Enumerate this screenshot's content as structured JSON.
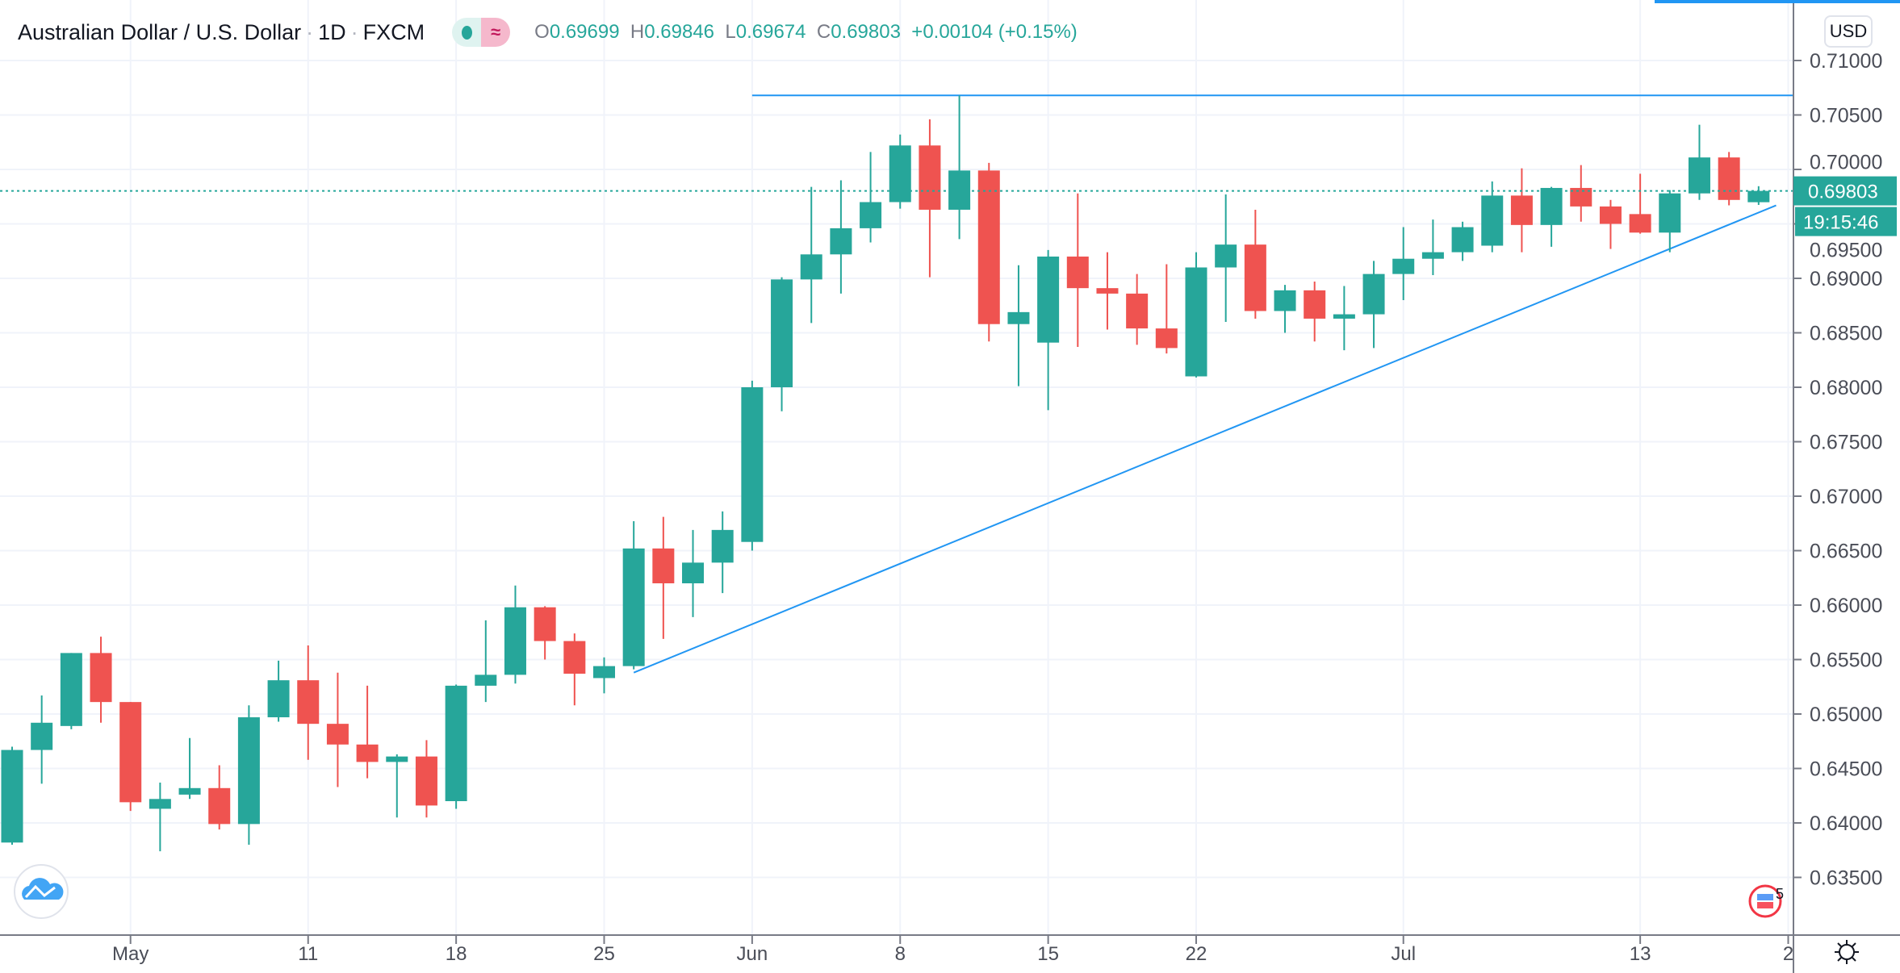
{
  "header": {
    "symbol": "Australian Dollar / U.S. Dollar",
    "interval": "1D",
    "exchange": "FXCM",
    "separator": "·",
    "ohlc": {
      "o_label": "O",
      "o": "0.69699",
      "h_label": "H",
      "h": "0.69846",
      "l_label": "L",
      "l": "0.69674",
      "c_label": "C",
      "c": "0.69803",
      "change": "+0.00104 (+0.15%)"
    },
    "pill_icon": "≈"
  },
  "currency_button": "USD",
  "price_label": "0.69803",
  "countdown": "19:15:46",
  "events_badge": "5",
  "colors": {
    "up": "#26a69a",
    "down": "#ef5350",
    "line": "#2196f3",
    "grid": "#f0f3fa"
  },
  "chart_data": {
    "type": "candlestick",
    "title": "Australian Dollar / U.S. Dollar · 1D · FXCM",
    "ylim": [
      0.6325,
      0.7125
    ],
    "y_ticks": [
      "0.71000",
      "0.70500",
      "0.70000",
      "0.69500",
      "0.69000",
      "0.68500",
      "0.68000",
      "0.67500",
      "0.67000",
      "0.66500",
      "0.66000",
      "0.65500",
      "0.65000",
      "0.64500",
      "0.64000",
      "0.63500"
    ],
    "y_tick_values": [
      0.71,
      0.705,
      0.7,
      0.695,
      0.69,
      0.685,
      0.68,
      0.675,
      0.67,
      0.665,
      0.66,
      0.655,
      0.65,
      0.645,
      0.64,
      0.635
    ],
    "x_ticks": [
      {
        "label": "May",
        "index": 4
      },
      {
        "label": "11",
        "index": 10
      },
      {
        "label": "18",
        "index": 15
      },
      {
        "label": "25",
        "index": 20
      },
      {
        "label": "Jun",
        "index": 25
      },
      {
        "label": "8",
        "index": 30
      },
      {
        "label": "15",
        "index": 35
      },
      {
        "label": "22",
        "index": 40
      },
      {
        "label": "Jul",
        "index": 47
      },
      {
        "label": "13",
        "index": 55
      },
      {
        "label": "2",
        "index": 60
      }
    ],
    "candles_ohlc": [
      [
        0.6382,
        0.647,
        0.638,
        0.6467
      ],
      [
        0.6467,
        0.6517,
        0.6436,
        0.6492
      ],
      [
        0.6489,
        0.6556,
        0.6486,
        0.6556
      ],
      [
        0.6556,
        0.6571,
        0.6492,
        0.6511
      ],
      [
        0.6511,
        0.6511,
        0.6411,
        0.6419
      ],
      [
        0.6413,
        0.6437,
        0.6374,
        0.6422
      ],
      [
        0.6426,
        0.6478,
        0.6422,
        0.6432
      ],
      [
        0.6432,
        0.6453,
        0.6394,
        0.6399
      ],
      [
        0.6399,
        0.6508,
        0.638,
        0.6497
      ],
      [
        0.6497,
        0.6549,
        0.6493,
        0.6531
      ],
      [
        0.6531,
        0.6563,
        0.6458,
        0.6491
      ],
      [
        0.6491,
        0.6538,
        0.6433,
        0.6472
      ],
      [
        0.6472,
        0.6526,
        0.6441,
        0.6456
      ],
      [
        0.6456,
        0.6463,
        0.6405,
        0.6461
      ],
      [
        0.6461,
        0.6476,
        0.6405,
        0.6416
      ],
      [
        0.642,
        0.6527,
        0.6413,
        0.6526
      ],
      [
        0.6526,
        0.6586,
        0.6511,
        0.6536
      ],
      [
        0.6536,
        0.6618,
        0.6528,
        0.6598
      ],
      [
        0.6598,
        0.6599,
        0.655,
        0.6567
      ],
      [
        0.6567,
        0.6574,
        0.6508,
        0.6537
      ],
      [
        0.6533,
        0.6552,
        0.6519,
        0.6544
      ],
      [
        0.6544,
        0.6677,
        0.6541,
        0.6652
      ],
      [
        0.6652,
        0.6681,
        0.6569,
        0.662
      ],
      [
        0.662,
        0.6669,
        0.6589,
        0.6639
      ],
      [
        0.6639,
        0.6686,
        0.6611,
        0.6669
      ],
      [
        0.6658,
        0.6806,
        0.665,
        0.68
      ],
      [
        0.68,
        0.6901,
        0.6778,
        0.6899
      ],
      [
        0.6899,
        0.6984,
        0.6859,
        0.6922
      ],
      [
        0.6922,
        0.699,
        0.6886,
        0.6946
      ],
      [
        0.6946,
        0.7016,
        0.6933,
        0.697
      ],
      [
        0.697,
        0.7032,
        0.6964,
        0.7022
      ],
      [
        0.7022,
        0.7046,
        0.6901,
        0.6963
      ],
      [
        0.6963,
        0.7068,
        0.6936,
        0.6999
      ],
      [
        0.6999,
        0.7006,
        0.6842,
        0.6858
      ],
      [
        0.6858,
        0.6912,
        0.6801,
        0.6869
      ],
      [
        0.6841,
        0.6926,
        0.6779,
        0.692
      ],
      [
        0.692,
        0.6978,
        0.6837,
        0.6891
      ],
      [
        0.6891,
        0.6924,
        0.6853,
        0.6886
      ],
      [
        0.6886,
        0.6904,
        0.6839,
        0.6854
      ],
      [
        0.6854,
        0.6913,
        0.6831,
        0.6836
      ],
      [
        0.681,
        0.6924,
        0.6809,
        0.691
      ],
      [
        0.691,
        0.6977,
        0.686,
        0.6931
      ],
      [
        0.6931,
        0.6963,
        0.6863,
        0.687
      ],
      [
        0.687,
        0.6894,
        0.685,
        0.6889
      ],
      [
        0.6889,
        0.6897,
        0.6842,
        0.6863
      ],
      [
        0.6863,
        0.6893,
        0.6834,
        0.6867
      ],
      [
        0.6867,
        0.6916,
        0.6836,
        0.6904
      ],
      [
        0.6904,
        0.6947,
        0.688,
        0.6918
      ],
      [
        0.6918,
        0.6954,
        0.6903,
        0.6924
      ],
      [
        0.6924,
        0.6952,
        0.6916,
        0.6947
      ],
      [
        0.693,
        0.6989,
        0.6924,
        0.6976
      ],
      [
        0.6976,
        0.7001,
        0.6924,
        0.6949
      ],
      [
        0.6949,
        0.6984,
        0.6929,
        0.6983
      ],
      [
        0.6983,
        0.7004,
        0.6952,
        0.6966
      ],
      [
        0.6966,
        0.6972,
        0.6927,
        0.695
      ],
      [
        0.6959,
        0.6996,
        0.6941,
        0.6942
      ],
      [
        0.6942,
        0.6981,
        0.6924,
        0.6978
      ],
      [
        0.6978,
        0.7041,
        0.6972,
        0.7011
      ],
      [
        0.7011,
        0.7016,
        0.6967,
        0.6972
      ],
      [
        0.69699,
        0.69846,
        0.69674,
        0.69803
      ]
    ],
    "current_price": 0.69803,
    "drawings": [
      {
        "type": "horizontal-ray",
        "price": 0.7068,
        "from_index": 25
      },
      {
        "type": "trendline",
        "from_index": 21,
        "from_price": 0.6538,
        "to_index": 60,
        "to_price": 0.6967
      }
    ],
    "grid": true
  }
}
